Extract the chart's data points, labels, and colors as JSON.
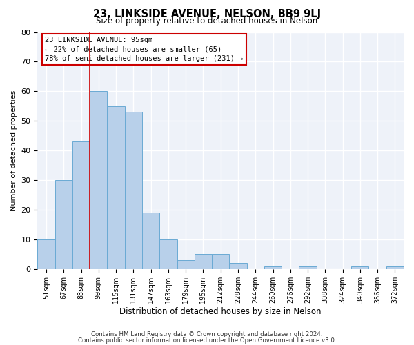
{
  "title": "23, LINKSIDE AVENUE, NELSON, BB9 9LJ",
  "subtitle": "Size of property relative to detached houses in Nelson",
  "xlabel": "Distribution of detached houses by size in Nelson",
  "ylabel": "Number of detached properties",
  "bar_labels": [
    "51sqm",
    "67sqm",
    "83sqm",
    "99sqm",
    "115sqm",
    "131sqm",
    "147sqm",
    "163sqm",
    "179sqm",
    "195sqm",
    "212sqm",
    "228sqm",
    "244sqm",
    "260sqm",
    "276sqm",
    "292sqm",
    "308sqm",
    "324sqm",
    "340sqm",
    "356sqm",
    "372sqm"
  ],
  "bar_heights": [
    10,
    30,
    43,
    60,
    55,
    53,
    19,
    10,
    3,
    5,
    5,
    2,
    0,
    1,
    0,
    1,
    0,
    0,
    1,
    0,
    1
  ],
  "bar_color": "#b8d0ea",
  "bar_edgecolor": "#6aaad4",
  "bg_color": "#eef2f9",
  "grid_color": "#ffffff",
  "vline_color": "#cc0000",
  "vline_x": 2.5,
  "annotation_lines": [
    "23 LINKSIDE AVENUE: 95sqm",
    "← 22% of detached houses are smaller (65)",
    "78% of semi-detached houses are larger (231) →"
  ],
  "footer_line1": "Contains HM Land Registry data © Crown copyright and database right 2024.",
  "footer_line2": "Contains public sector information licensed under the Open Government Licence v3.0.",
  "ylim": [
    0,
    80
  ],
  "yticks": [
    0,
    10,
    20,
    30,
    40,
    50,
    60,
    70,
    80
  ]
}
